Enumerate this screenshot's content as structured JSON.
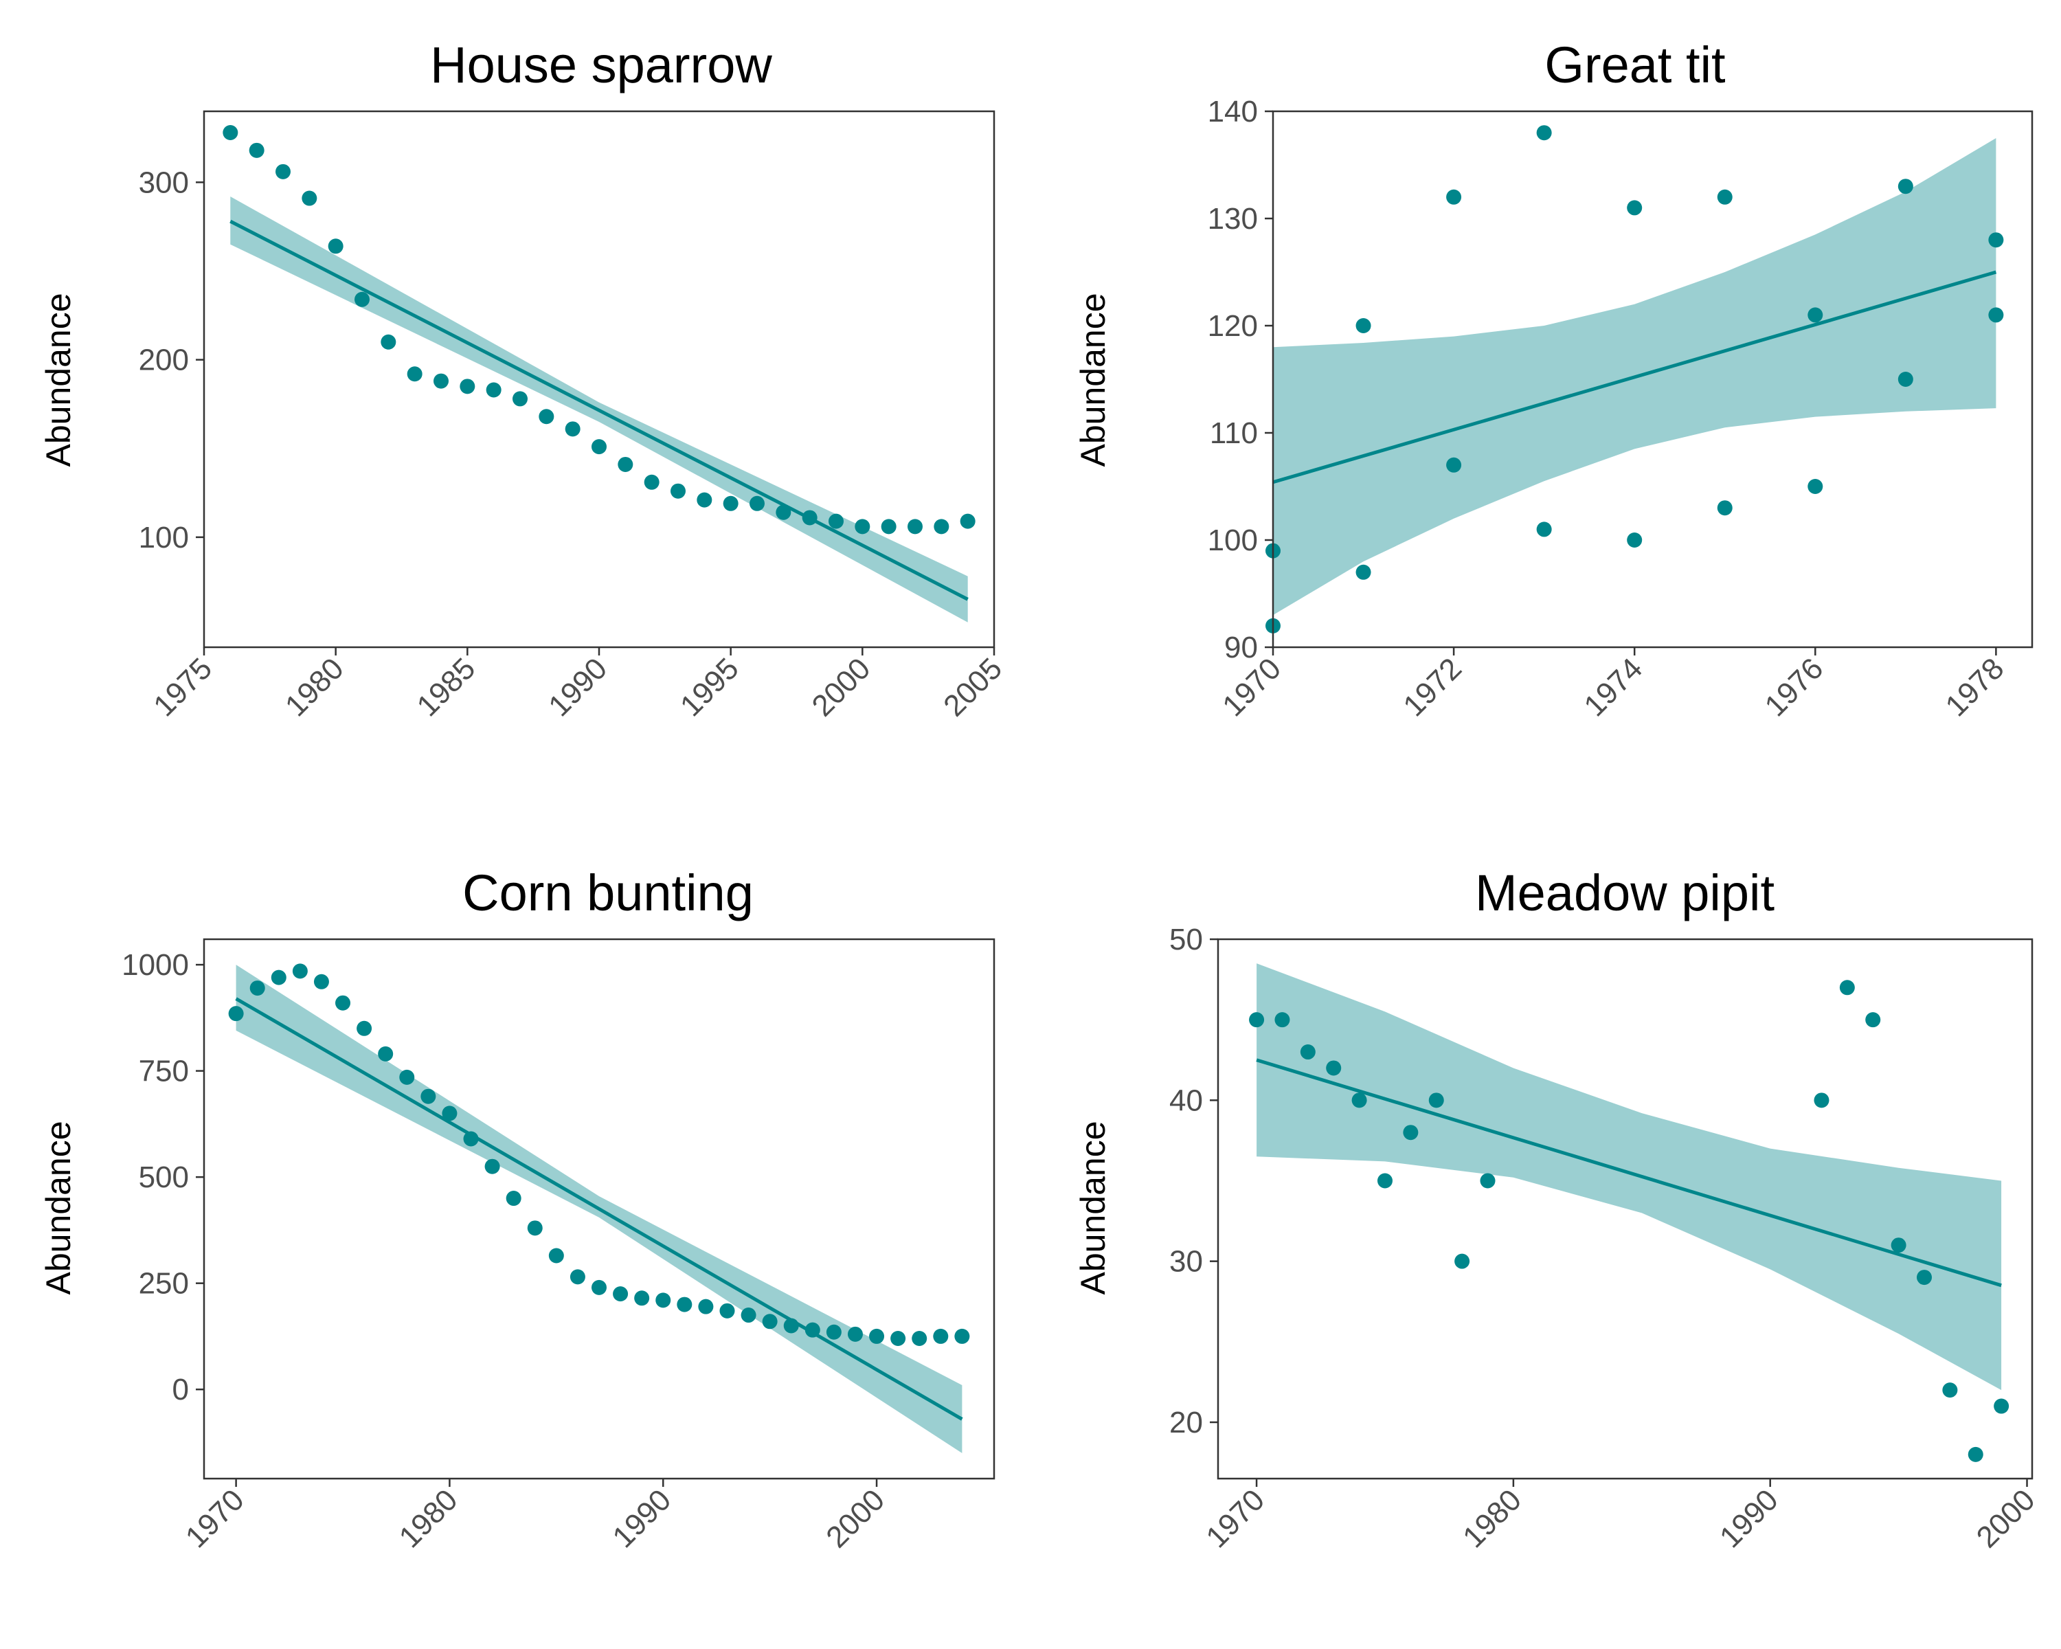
{
  "colors": {
    "accent": "#00868b",
    "band": "#9bcfd1"
  },
  "chart_data": [
    {
      "type": "scatter",
      "title": "House sparrow",
      "ylabel": "Abundance",
      "xlim": [
        1975,
        2005
      ],
      "ylim": [
        38,
        340
      ],
      "xticks": [
        "1975",
        "1980",
        "1985",
        "1990",
        "1995",
        "2000",
        "2005"
      ],
      "yticks": [
        "100",
        "200",
        "300"
      ],
      "x": [
        1976,
        1977,
        1978,
        1979,
        1980,
        1981,
        1982,
        1983,
        1984,
        1985,
        1986,
        1987,
        1988,
        1989,
        1990,
        1991,
        1992,
        1993,
        1994,
        1995,
        1996,
        1997,
        1998,
        1999,
        2000,
        2001,
        2002,
        2003,
        2004
      ],
      "y": [
        328,
        318,
        306,
        291,
        264,
        234,
        210,
        192,
        188,
        185,
        183,
        178,
        168,
        161,
        151,
        141,
        131,
        126,
        121,
        119,
        119,
        114,
        111,
        109,
        106,
        106,
        106,
        106,
        109
      ],
      "fit": {
        "x": [
          1976,
          2004
        ],
        "y": [
          278,
          65
        ]
      },
      "band": {
        "x": [
          1976,
          1990,
          2004
        ],
        "lower": [
          265,
          165,
          52
        ],
        "upper": [
          292,
          176,
          78
        ]
      }
    },
    {
      "type": "scatter",
      "title": "Great tit",
      "ylabel": "Abundance",
      "xlim": [
        1970,
        1978.4
      ],
      "ylim": [
        90,
        140
      ],
      "xticks": [
        "1970",
        "1972",
        "1974",
        "1976",
        "1978"
      ],
      "yticks": [
        "90",
        "100",
        "110",
        "120",
        "130",
        "140"
      ],
      "x": [
        1970,
        1970,
        1971,
        1971,
        1972,
        1972,
        1973,
        1973,
        1974,
        1974,
        1975,
        1975,
        1976,
        1976,
        1977,
        1977,
        1978,
        1978
      ],
      "y": [
        99,
        92,
        120,
        97,
        132,
        107,
        138,
        101,
        131,
        100,
        132,
        103,
        121,
        105,
        133,
        115,
        128,
        121
      ],
      "fit": {
        "x": [
          1970,
          1978
        ],
        "y": [
          105.4,
          125.0
        ]
      },
      "band": {
        "x": [
          1970,
          1971,
          1972,
          1973,
          1974,
          1975,
          1976,
          1977,
          1978
        ],
        "lower": [
          93,
          98,
          102,
          105.5,
          108.5,
          110.5,
          111.5,
          112,
          112.3
        ],
        "upper": [
          118,
          118.4,
          119,
          120,
          122,
          125,
          128.5,
          132.5,
          137.5
        ]
      }
    },
    {
      "type": "scatter",
      "title": "Corn bunting",
      "ylabel": "Abundance",
      "xlim": [
        1968.5,
        2005.5
      ],
      "ylim": [
        -210,
        1060
      ],
      "xticks": [
        "1970",
        "1980",
        "1990",
        "2000"
      ],
      "yticks": [
        "0",
        "250",
        "500",
        "750",
        "1000"
      ],
      "x": [
        1970,
        1971,
        1972,
        1973,
        1974,
        1975,
        1976,
        1977,
        1978,
        1979,
        1980,
        1981,
        1982,
        1983,
        1984,
        1985,
        1986,
        1987,
        1988,
        1989,
        1990,
        1991,
        1992,
        1993,
        1994,
        1995,
        1996,
        1997,
        1998,
        1999,
        2000,
        2001,
        2002,
        2003,
        2004
      ],
      "y": [
        885,
        945,
        970,
        985,
        960,
        910,
        850,
        790,
        735,
        690,
        650,
        590,
        525,
        450,
        380,
        315,
        265,
        240,
        225,
        215,
        210,
        200,
        195,
        185,
        175,
        160,
        150,
        140,
        135,
        130,
        125,
        120,
        120,
        125,
        125
      ],
      "fit": {
        "x": [
          1970,
          2004
        ],
        "y": [
          920,
          -70
        ]
      },
      "band": {
        "x": [
          1970,
          1987,
          2004
        ],
        "lower": [
          845,
          405,
          -150
        ],
        "upper": [
          1000,
          455,
          10
        ]
      }
    },
    {
      "type": "scatter",
      "title": "Meadow pipit",
      "ylabel": "Abundance",
      "xlim": [
        1968.5,
        2000.2
      ],
      "ylim": [
        16.5,
        50
      ],
      "xticks": [
        "1970",
        "1980",
        "1990",
        "2000"
      ],
      "yticks": [
        "20",
        "30",
        "40",
        "50"
      ],
      "x": [
        1970,
        1971,
        1972,
        1973,
        1974,
        1975,
        1976,
        1977,
        1978,
        1979,
        1992,
        1993,
        1994,
        1995,
        1996,
        1997,
        1998,
        1999
      ],
      "y": [
        45,
        45,
        43,
        42,
        40,
        35,
        38,
        40,
        30,
        35,
        40,
        47,
        45,
        31,
        29,
        22,
        18,
        21
      ],
      "fit": {
        "x": [
          1970,
          1999
        ],
        "y": [
          42.5,
          28.5
        ]
      },
      "band": {
        "x": [
          1970,
          1975,
          1980,
          1985,
          1990,
          1995,
          1999
        ],
        "lower": [
          36.5,
          36.2,
          35.2,
          33,
          29.5,
          25.5,
          22
        ],
        "upper": [
          48.5,
          45.5,
          42,
          39.2,
          37,
          35.8,
          35
        ]
      }
    }
  ]
}
